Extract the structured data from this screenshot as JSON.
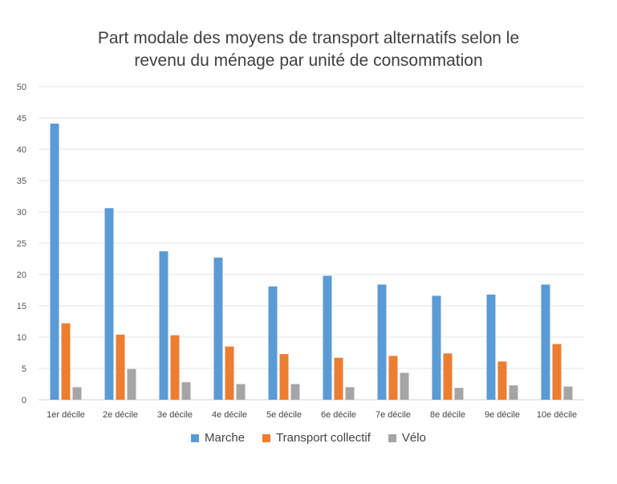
{
  "chart_data": {
    "type": "bar",
    "title_line1": "Part modale des moyens de transport alternatifs selon le",
    "title_line2": "revenu du ménage par unité de consommation",
    "xlabel": "",
    "ylabel": "",
    "ylim": [
      0,
      50
    ],
    "yticks": [
      0,
      5,
      10,
      15,
      20,
      25,
      30,
      35,
      40,
      45,
      50
    ],
    "grid": true,
    "legend_position": "bottom",
    "categories": [
      "1er décile",
      "2e décile",
      "3e décile",
      "4e décile",
      "5e décile",
      "6e décile",
      "7e décile",
      "8e décile",
      "9e décile",
      "10e décile"
    ],
    "series": [
      {
        "name": "Marche",
        "color": "#5B9BD5",
        "values": [
          44.1,
          30.6,
          23.7,
          22.7,
          18.1,
          19.8,
          18.4,
          16.6,
          16.8,
          18.4
        ]
      },
      {
        "name": "Transport collectif",
        "color": "#ED7D31",
        "values": [
          12.2,
          10.4,
          10.3,
          8.5,
          7.3,
          6.7,
          7.0,
          7.4,
          6.1,
          8.9
        ]
      },
      {
        "name": "Vélo",
        "color": "#A5A5A5",
        "values": [
          2.0,
          4.9,
          2.8,
          2.5,
          2.5,
          2.0,
          4.3,
          1.9,
          2.3,
          2.1
        ]
      }
    ]
  }
}
